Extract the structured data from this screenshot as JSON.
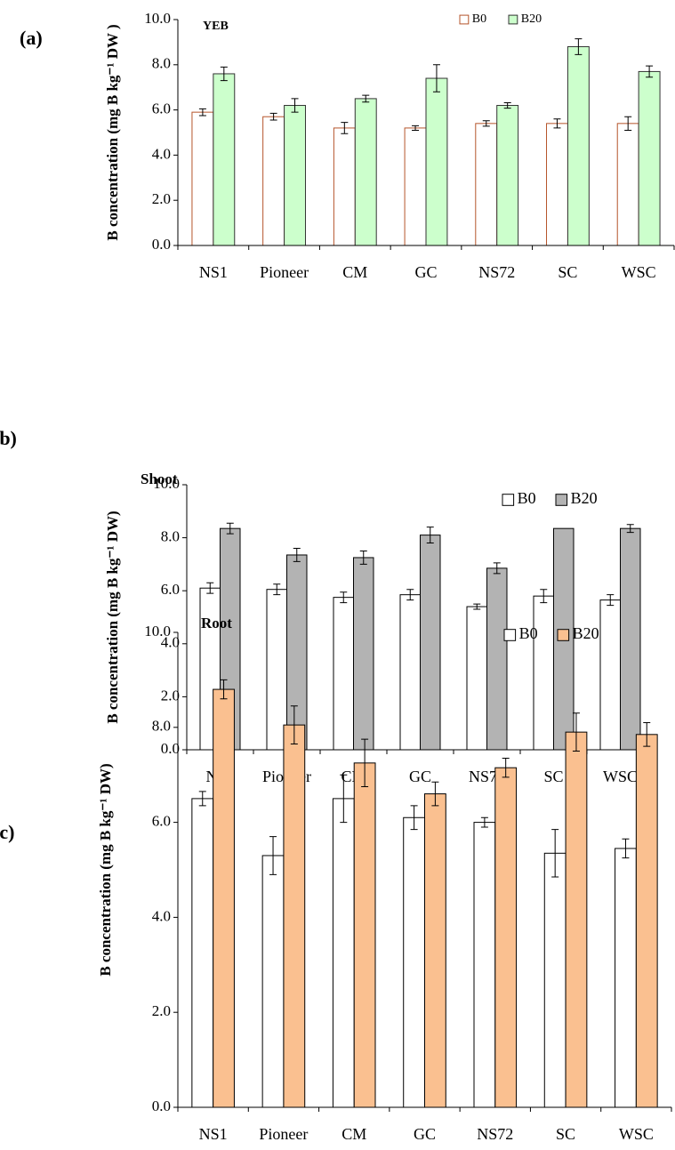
{
  "chart_data": [
    {
      "type": "bar",
      "panel_label": "(a)",
      "title": "YEB",
      "y_label": "B concentration (mg B kg⁻¹ DW )",
      "categories": [
        "NS1",
        "Pioneer",
        "CM",
        "GC",
        "NS72",
        "SC",
        "WSC"
      ],
      "series": [
        {
          "name": "B0",
          "color": "#ffffff",
          "edge": "#b5552b",
          "values": [
            5.9,
            5.7,
            5.2,
            5.2,
            5.4,
            5.4,
            5.4
          ],
          "errors": [
            0.15,
            0.15,
            0.25,
            0.1,
            0.12,
            0.2,
            0.3
          ]
        },
        {
          "name": "B20",
          "color": "#ccffcc",
          "edge": "#333333",
          "values": [
            7.6,
            6.2,
            6.5,
            7.4,
            6.2,
            8.8,
            7.7
          ],
          "errors": [
            0.3,
            0.3,
            0.15,
            0.6,
            0.12,
            0.35,
            0.25
          ]
        }
      ],
      "ylim": [
        0,
        10
      ],
      "yticks": [
        {
          "value": 0,
          "label": "0.0"
        },
        {
          "value": 2,
          "label": "2.0"
        },
        {
          "value": 4,
          "label": "4.0"
        },
        {
          "value": 6,
          "label": "6.0"
        },
        {
          "value": 8,
          "label": "8.0"
        },
        {
          "value": 10,
          "label": "10.0"
        }
      ],
      "grid": false,
      "legend": "top"
    },
    {
      "type": "bar",
      "panel_label": "(b)",
      "title": "Shoot",
      "y_label": "B concentration (mg B kg⁻¹ DW)",
      "categories": [
        "NS1",
        "Pioneer",
        "CM",
        "GC",
        "NS72",
        "SC",
        "WSC"
      ],
      "series": [
        {
          "name": "B0",
          "color": "#ffffff",
          "edge": "#000000",
          "values": [
            6.1,
            6.05,
            5.75,
            5.85,
            5.4,
            5.8,
            5.65
          ],
          "errors": [
            0.2,
            0.2,
            0.2,
            0.2,
            0.1,
            0.25,
            0.2
          ]
        },
        {
          "name": "B20",
          "color": "#b3b3b3",
          "edge": "#000000",
          "values": [
            8.35,
            7.35,
            7.25,
            8.1,
            6.85,
            8.35,
            8.35
          ],
          "errors": [
            0.2,
            0.25,
            0.25,
            0.3,
            0.2,
            null,
            0.15
          ]
        }
      ],
      "ylim": [
        0,
        10
      ],
      "yticks": [
        {
          "value": 0,
          "label": "0.0"
        },
        {
          "value": 2,
          "label": "2.0"
        },
        {
          "value": 4,
          "label": "4.0"
        },
        {
          "value": 6,
          "label": "6.0"
        },
        {
          "value": 8,
          "label": "8.0"
        },
        {
          "value": 10,
          "label": "10.0"
        }
      ],
      "grid": false,
      "legend": "upper right"
    },
    {
      "type": "bar",
      "panel_label": "(c)",
      "title": "Root",
      "y_label": "B concentration (mg B kg⁻¹ DW)",
      "categories": [
        "NS1",
        "Pioneer",
        "CM",
        "GC",
        "NS72",
        "SC",
        "WSC"
      ],
      "series": [
        {
          "name": "B0",
          "color": "#ffffff",
          "edge": "#000000",
          "values": [
            6.5,
            5.3,
            6.5,
            6.1,
            6.0,
            5.35,
            5.45
          ],
          "errors": [
            0.15,
            0.4,
            0.5,
            0.25,
            0.1,
            0.5,
            0.2
          ]
        },
        {
          "name": "B20",
          "color": "#fac090",
          "edge": "#000000",
          "values": [
            8.8,
            8.05,
            7.25,
            6.6,
            7.15,
            7.9,
            7.85
          ],
          "errors": [
            0.2,
            0.4,
            0.5,
            0.25,
            0.2,
            0.4,
            0.25
          ]
        }
      ],
      "ylim": [
        0,
        10
      ],
      "yticks": [
        {
          "value": 0,
          "label": "0.0"
        },
        {
          "value": 2,
          "label": "2.0"
        },
        {
          "value": 4,
          "label": "4.0"
        },
        {
          "value": 6,
          "label": "6.0"
        },
        {
          "value": 8,
          "label": "8.0"
        },
        {
          "value": 10,
          "label": "10.0"
        }
      ],
      "grid": false,
      "legend": "upper right"
    }
  ]
}
